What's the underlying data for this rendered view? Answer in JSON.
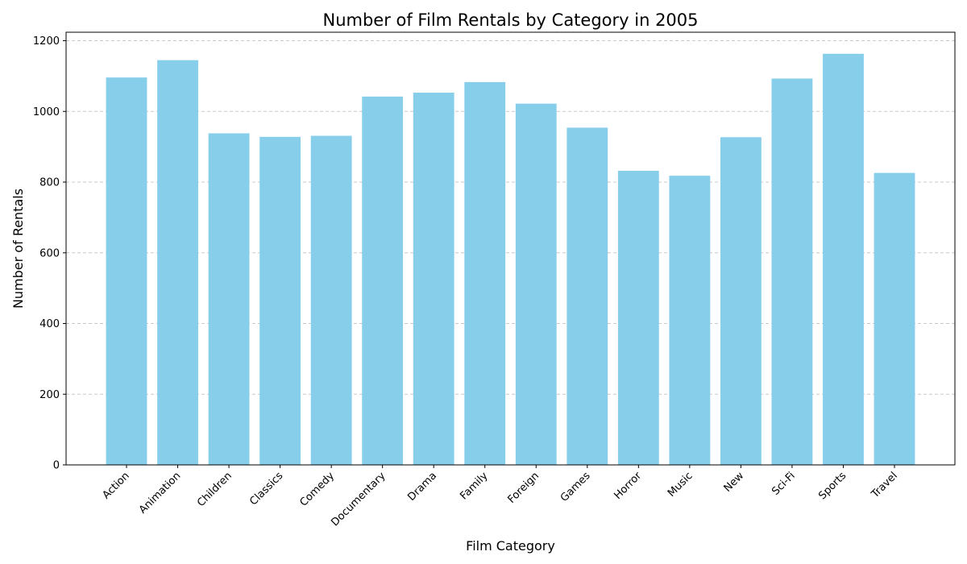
{
  "chart_data": {
    "type": "bar",
    "title": "Number of Film Rentals by Category in 2005",
    "xlabel": "Film Category",
    "ylabel": "Number of Rentals",
    "categories": [
      "Action",
      "Animation",
      "Children",
      "Classics",
      "Comedy",
      "Documentary",
      "Drama",
      "Family",
      "Foreign",
      "Games",
      "Horror",
      "Music",
      "New",
      "Sci-Fi",
      "Sports",
      "Travel"
    ],
    "values": [
      1096,
      1145,
      938,
      928,
      931,
      1042,
      1053,
      1083,
      1022,
      954,
      832,
      818,
      927,
      1093,
      1163,
      826
    ],
    "ylim": [
      0,
      1224
    ],
    "yticks": [
      0,
      200,
      400,
      600,
      800,
      1000,
      1200
    ],
    "grid": "y-dashed",
    "colors": {
      "bar": "#87CEEB",
      "grid": "#c8c8c8",
      "axis": "#000000"
    }
  }
}
